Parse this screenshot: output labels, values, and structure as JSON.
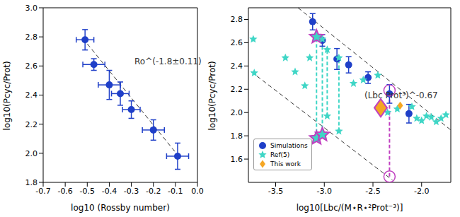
{
  "chart_data": [
    {
      "type": "scatter",
      "x_label": "log10 (Rossby number)",
      "y_label": "log10(Pcyc/Prot)",
      "annotation": "Ro^(-1.8±0.11)",
      "xlim": [
        -0.7,
        0.0
      ],
      "xticks": [
        -0.7,
        -0.6,
        -0.5,
        -0.4,
        -0.3,
        -0.2,
        -0.1,
        {
          "value": 0,
          "label": "0.0"
        }
      ],
      "ylim": [
        1.8,
        3.0
      ],
      "yticks": [
        1.8,
        {
          "value": 2,
          "label": "2.0"
        },
        2.2,
        2.4,
        2.6,
        2.8,
        {
          "value": 3,
          "label": "3.0"
        }
      ],
      "series": [
        {
          "color": "#1f3fc8",
          "marker": "circle",
          "x": [
            -0.51,
            -0.47,
            -0.4,
            -0.35,
            -0.3,
            -0.2,
            -0.09
          ],
          "values": [
            2.78,
            2.61,
            2.47,
            2.41,
            2.3,
            2.16,
            1.98
          ],
          "x_err": [
            0.04,
            0.05,
            0.05,
            0.04,
            0.04,
            0.05,
            0.05
          ],
          "y_err": [
            0.07,
            0.04,
            0.1,
            0.08,
            0.06,
            0.07,
            0.09
          ]
        }
      ],
      "fits": [
        {
          "color": "#333333",
          "line_style": "dashed",
          "x": [
            -0.52,
            -0.08
          ],
          "values": [
            2.79,
            1.97
          ]
        }
      ]
    },
    {
      "type": "scatter",
      "x_label": "log10[Lbc/(M⋆R⋆²Prot⁻³)]",
      "y_label": "log10(Pcyc/Prot)",
      "annotation": "(Lbc Prot³)^-0.67",
      "legend": "lower left",
      "xlim": [
        -3.78,
        -1.7
      ],
      "xticks": [
        -3.5,
        {
          "value": -3,
          "label": "-3.0"
        },
        -2.5,
        {
          "value": -2,
          "label": "-2.0"
        }
      ],
      "ylim": [
        1.4,
        2.9
      ],
      "yticks": [
        1.6,
        1.8,
        {
          "value": 2,
          "label": "2.0"
        },
        2.2,
        2.4,
        2.6,
        2.8
      ],
      "series": [
        {
          "name": "Simulations",
          "color": "#1f3fc8",
          "marker": "circle",
          "x": [
            -3.12,
            -3.02,
            -2.87,
            -2.75,
            -2.55,
            -2.33,
            -2.13
          ],
          "values": [
            2.78,
            2.62,
            2.46,
            2.41,
            2.3,
            2.16,
            1.99
          ],
          "y_err": [
            0.07,
            0.05,
            0.09,
            0.07,
            0.05,
            0.08,
            0.08
          ]
        },
        {
          "name": "Ref(5)",
          "color": "#3fd6c6",
          "marker": "star",
          "x": [
            -3.73,
            -3.72,
            -3.4,
            -3.3,
            -3.2,
            -3.15,
            -3.08,
            -3.08,
            -3.02,
            -3.02,
            -2.97,
            -2.97,
            -2.85,
            -2.85,
            -2.7,
            -2.6,
            -2.45,
            -2.35,
            -2.25,
            -2.1,
            -2.05,
            -2.0,
            -1.95,
            -1.9,
            -1.85,
            -1.8,
            -1.75
          ],
          "values": [
            2.63,
            2.34,
            2.47,
            2.35,
            2.23,
            2.47,
            2.65,
            1.78,
            2.63,
            1.81,
            2.54,
            1.97,
            2.47,
            1.84,
            2.25,
            2.28,
            2.32,
            2.0,
            2.03,
            2.05,
            1.95,
            1.93,
            1.97,
            1.96,
            1.92,
            1.95,
            1.98
          ],
          "highlight": [
            false,
            false,
            false,
            false,
            false,
            false,
            true,
            true,
            false,
            true,
            false,
            false,
            false,
            false,
            false,
            false,
            false,
            false,
            false,
            false,
            false,
            false,
            false,
            false,
            false,
            false,
            false
          ]
        },
        {
          "name": "This work",
          "color": "#f5a623",
          "marker": "diamond",
          "x": [
            -2.42,
            -2.22
          ],
          "values": [
            2.04,
            2.06
          ],
          "highlight": [
            true,
            false
          ]
        }
      ],
      "highlight_color": "#c040c0",
      "open_circles": {
        "color": "#c040c0",
        "x": [
          -2.33,
          -2.33
        ],
        "values": [
          2.19,
          1.45
        ]
      },
      "connectors": [
        {
          "color": "#3fd6c6",
          "x": -3.08,
          "from": 1.78,
          "to": 2.65
        },
        {
          "color": "#3fd6c6",
          "x": -3.02,
          "from": 1.81,
          "to": 2.63
        },
        {
          "color": "#3fd6c6",
          "x": -2.97,
          "from": 1.97,
          "to": 2.54
        },
        {
          "color": "#3fd6c6",
          "x": -2.85,
          "from": 1.84,
          "to": 2.47
        },
        {
          "color": "#c040c0",
          "x": -2.33,
          "from": 1.45,
          "to": 2.19
        }
      ],
      "fits": [
        {
          "color": "#333333",
          "line_style": "dashed",
          "x": [
            -3.27,
            -1.7
          ],
          "values": [
            2.9,
            1.85
          ]
        },
        {
          "color": "#333333",
          "line_style": "dashed",
          "x": [
            -3.75,
            -2.3
          ],
          "values": [
            2.35,
            1.42
          ]
        }
      ]
    }
  ]
}
